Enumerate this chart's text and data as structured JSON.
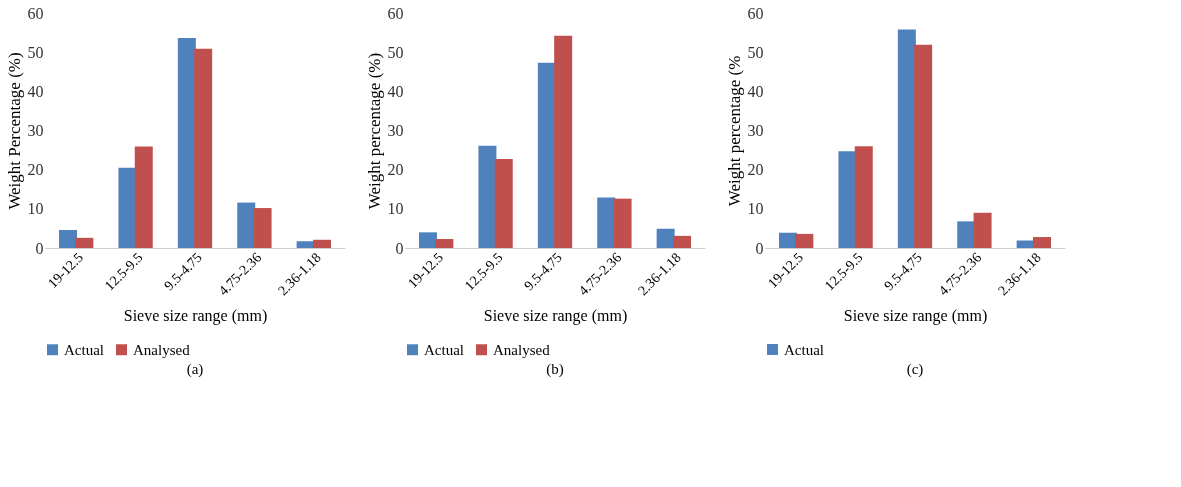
{
  "chart_data": [
    {
      "type": "bar",
      "xlabel": "Sieve size range (mm)",
      "ylabel": "Weight  Percentage (%)",
      "categories": [
        "19-12.5",
        "12.5-9.5",
        "9.5-4.75",
        "4.75-2.36",
        "2.36-1.18"
      ],
      "ylim": [
        0,
        60
      ],
      "yticks": [
        0,
        10,
        20,
        30,
        40,
        50,
        60
      ],
      "grid": false,
      "legend": "bottom",
      "annotations": [
        "(a)"
      ],
      "series": [
        {
          "name": "Actual",
          "color": "#4f81bd",
          "values": [
            4.6,
            20.5,
            53.6,
            11.6,
            1.7
          ]
        },
        {
          "name": "Analysed",
          "color": "#c0504d",
          "values": [
            2.6,
            25.9,
            50.9,
            10.2,
            2.1
          ]
        }
      ]
    },
    {
      "type": "bar",
      "xlabel": "Sieve size range (mm)",
      "ylabel": "Weight percentage (%)",
      "categories": [
        "19-12.5",
        "12.5-9.5",
        "9.5-4.75",
        "4.75-2.36",
        "2.36-1.18"
      ],
      "ylim": [
        0,
        60
      ],
      "yticks": [
        0,
        10,
        20,
        30,
        40,
        50,
        60
      ],
      "grid": false,
      "legend": "bottom",
      "annotations": [
        "(b)"
      ],
      "series": [
        {
          "name": "Actual",
          "color": "#4f81bd",
          "values": [
            4.0,
            26.1,
            47.3,
            12.9,
            4.9
          ]
        },
        {
          "name": "Analysed",
          "color": "#c0504d",
          "values": [
            2.3,
            22.7,
            54.2,
            12.6,
            3.1
          ]
        }
      ]
    },
    {
      "type": "bar",
      "xlabel": "Sieve size range (mm)",
      "ylabel": "Weight percentage (%",
      "categories": [
        "19-12.5",
        "12.5-9.5",
        "9.5-4.75",
        "4.75-2.36",
        "2.36-1.18"
      ],
      "ylim": [
        0,
        60
      ],
      "yticks": [
        0,
        10,
        20,
        30,
        40,
        50,
        60
      ],
      "grid": false,
      "legend": "bottom",
      "annotations": [
        "(c)"
      ],
      "series": [
        {
          "name": "Actual",
          "color": "#4f81bd",
          "values": [
            3.9,
            24.7,
            55.8,
            6.8,
            1.9
          ]
        },
        {
          "color": "#c0504d",
          "values": [
            3.6,
            26.0,
            51.9,
            9.0,
            2.8
          ]
        }
      ]
    }
  ]
}
